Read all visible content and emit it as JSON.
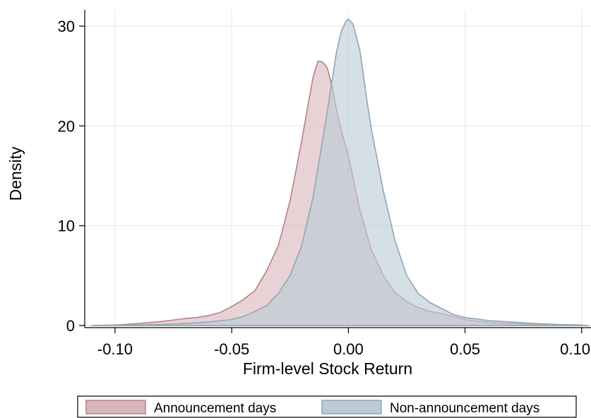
{
  "chart_data": {
    "type": "area",
    "title": "",
    "xlabel": "Firm-level Stock Return",
    "ylabel": "Density",
    "xlim": [
      -0.113,
      0.104
    ],
    "ylim": [
      0,
      31
    ],
    "x_ticks": [
      -0.1,
      -0.05,
      0.0,
      0.05,
      0.1
    ],
    "x_tick_labels": [
      "-0.10",
      "-0.05",
      "0.00",
      "0.05",
      "0.10"
    ],
    "y_ticks": [
      0,
      10,
      20,
      30
    ],
    "y_tick_labels": [
      "0",
      "10",
      "20",
      "30"
    ],
    "grid": true,
    "legend_position": "bottom",
    "series": [
      {
        "name": "Announcement days",
        "fill": "#d8b7bc",
        "stroke": "#b97f87",
        "x": [
          -0.11,
          -0.1,
          -0.09,
          -0.08,
          -0.07,
          -0.065,
          -0.06,
          -0.055,
          -0.05,
          -0.045,
          -0.04,
          -0.035,
          -0.03,
          -0.025,
          -0.02,
          -0.017,
          -0.015,
          -0.013,
          -0.011,
          -0.009,
          -0.007,
          -0.005,
          -0.003,
          0.0,
          0.005,
          0.01,
          0.015,
          0.02,
          0.025,
          0.03,
          0.035,
          0.04,
          0.05,
          0.06,
          0.07,
          0.08,
          0.09,
          0.1
        ],
        "y": [
          0,
          0.05,
          0.2,
          0.4,
          0.7,
          0.8,
          1.0,
          1.3,
          1.9,
          2.6,
          3.5,
          5.5,
          8.0,
          12.5,
          18.5,
          22.5,
          25.0,
          26.5,
          26.4,
          25.8,
          24.0,
          21.5,
          19.5,
          17.0,
          11.5,
          7.5,
          5.0,
          3.3,
          2.4,
          1.8,
          1.4,
          1.2,
          0.6,
          0.3,
          0.2,
          0.1,
          0.05,
          0
        ]
      },
      {
        "name": "Non-announcement days",
        "fill": "#bccbd6",
        "stroke": "#8fa6b6",
        "x": [
          -0.11,
          -0.1,
          -0.09,
          -0.08,
          -0.07,
          -0.06,
          -0.05,
          -0.045,
          -0.04,
          -0.035,
          -0.03,
          -0.025,
          -0.02,
          -0.015,
          -0.01,
          -0.007,
          -0.005,
          -0.003,
          -0.001,
          0.0,
          0.002,
          0.005,
          0.008,
          0.01,
          0.015,
          0.02,
          0.025,
          0.03,
          0.035,
          0.04,
          0.045,
          0.05,
          0.06,
          0.07,
          0.08,
          0.09,
          0.1,
          0.103
        ],
        "y": [
          0,
          0.03,
          0.05,
          0.1,
          0.2,
          0.35,
          0.6,
          0.9,
          1.4,
          2.0,
          3.2,
          5.0,
          8.0,
          13.0,
          20.0,
          24.5,
          27.5,
          29.5,
          30.5,
          30.7,
          30.2,
          27.5,
          22.5,
          19.5,
          13.5,
          8.5,
          5.0,
          3.2,
          2.3,
          1.7,
          1.1,
          0.8,
          0.5,
          0.35,
          0.2,
          0.1,
          0.05,
          0
        ]
      }
    ]
  }
}
